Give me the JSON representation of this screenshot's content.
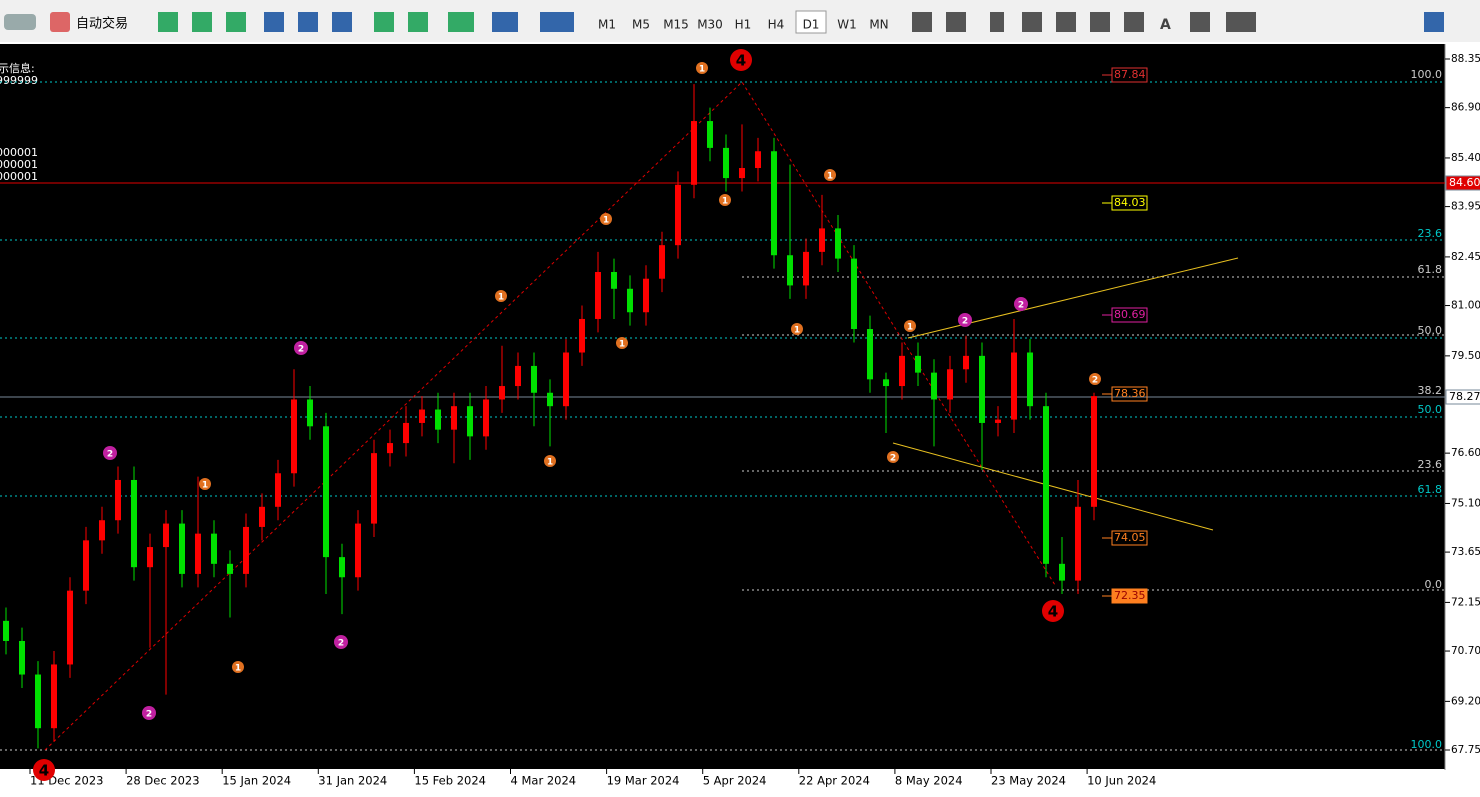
{
  "toolbar": {
    "auto_trade": "自动交易",
    "periods": [
      "M1",
      "M5",
      "M15",
      "M30",
      "H1",
      "H4",
      "D1",
      "W1",
      "MN"
    ],
    "text_tool": "A"
  },
  "info": {
    "title": "示信息:",
    "lines": [
      "999999",
      "000001",
      "000001",
      "000001"
    ]
  },
  "chart_data": {
    "type": "candlestick",
    "ylim": [
      67.75,
      88.35
    ],
    "yticks": [
      88.35,
      {
        "value": 86.9,
        "label": "86.90"
      },
      {
        "value": 85.4,
        "label": "85.40"
      },
      83.95,
      82.45,
      {
        "value": 81.0,
        "label": "81.00"
      },
      {
        "value": 79.5,
        "label": "79.50"
      },
      {
        "value": 76.6,
        "label": "76.60"
      },
      {
        "value": 75.1,
        "label": "75.10"
      },
      73.65,
      72.15,
      {
        "value": 70.7,
        "label": "70.70"
      },
      {
        "value": 69.2,
        "label": "69.20"
      },
      67.75
    ],
    "x_labels": [
      "11 Dec 2023",
      "28 Dec 2023",
      "15 Jan 2024",
      "31 Jan 2024",
      "15 Feb 2024",
      "4 Mar 2024",
      "19 Mar 2024",
      "5 Apr 2024",
      "22 Apr 2024",
      "8 May 2024",
      "23 May 2024",
      "10 Jun 2024"
    ],
    "up_color": "#ff0000",
    "down_color": "#00e000",
    "candles": [
      [
        71.6,
        72.0,
        70.6,
        71.0
      ],
      [
        71.0,
        71.4,
        69.6,
        70.0
      ],
      [
        70.0,
        70.4,
        67.8,
        68.4
      ],
      [
        68.4,
        70.7,
        68.0,
        70.3
      ],
      [
        70.3,
        72.9,
        69.9,
        72.5
      ],
      [
        72.5,
        74.4,
        72.1,
        74.0
      ],
      [
        74.0,
        75.0,
        73.6,
        74.6
      ],
      [
        74.6,
        76.2,
        74.2,
        75.8
      ],
      [
        75.8,
        76.2,
        72.8,
        73.2
      ],
      [
        73.2,
        74.2,
        70.8,
        73.8
      ],
      [
        73.8,
        74.9,
        69.4,
        74.5
      ],
      [
        74.5,
        74.9,
        72.6,
        73.0
      ],
      [
        73.0,
        75.9,
        72.6,
        74.2
      ],
      [
        74.2,
        74.6,
        72.9,
        73.3
      ],
      [
        73.3,
        73.7,
        71.7,
        73.0
      ],
      [
        73.0,
        74.8,
        72.6,
        74.4
      ],
      [
        74.4,
        75.4,
        74.0,
        75.0
      ],
      [
        75.0,
        76.4,
        74.6,
        76.0
      ],
      [
        76.0,
        79.1,
        75.6,
        78.2
      ],
      [
        78.2,
        78.6,
        77.0,
        77.4
      ],
      [
        77.4,
        77.8,
        72.4,
        73.5
      ],
      [
        73.5,
        73.9,
        71.8,
        72.9
      ],
      [
        72.9,
        74.9,
        72.5,
        74.5
      ],
      [
        74.5,
        77.0,
        74.1,
        76.6
      ],
      [
        76.6,
        77.3,
        76.2,
        76.9
      ],
      [
        76.9,
        78.0,
        76.5,
        77.5
      ],
      [
        77.5,
        78.3,
        77.1,
        77.9
      ],
      [
        77.9,
        78.4,
        76.9,
        77.3
      ],
      [
        77.3,
        78.4,
        76.3,
        78.0
      ],
      [
        78.0,
        78.4,
        76.4,
        77.1
      ],
      [
        77.1,
        78.6,
        76.7,
        78.2
      ],
      [
        78.2,
        79.8,
        77.8,
        78.6
      ],
      [
        78.6,
        79.6,
        78.2,
        79.2
      ],
      [
        79.2,
        79.6,
        77.4,
        78.4
      ],
      [
        78.4,
        78.8,
        76.8,
        78.0
      ],
      [
        78.0,
        80.0,
        77.6,
        79.6
      ],
      [
        79.6,
        81.0,
        79.2,
        80.6
      ],
      [
        80.6,
        82.6,
        80.2,
        82.0
      ],
      [
        82.0,
        82.4,
        80.6,
        81.5
      ],
      [
        81.5,
        81.9,
        80.4,
        80.8
      ],
      [
        80.8,
        82.2,
        80.4,
        81.8
      ],
      [
        81.8,
        83.2,
        81.4,
        82.8
      ],
      [
        82.8,
        85.0,
        82.4,
        84.6
      ],
      [
        84.6,
        87.6,
        84.2,
        86.5
      ],
      [
        86.5,
        86.9,
        85.3,
        85.7
      ],
      [
        85.7,
        86.1,
        84.4,
        84.8
      ],
      [
        84.8,
        86.4,
        84.4,
        85.1
      ],
      [
        85.1,
        86.0,
        84.7,
        85.6
      ],
      [
        85.6,
        86.0,
        82.1,
        82.5
      ],
      [
        82.5,
        85.2,
        81.2,
        81.6
      ],
      [
        81.6,
        83.0,
        81.2,
        82.6
      ],
      [
        82.6,
        84.3,
        82.2,
        83.3
      ],
      [
        83.3,
        83.7,
        82.0,
        82.4
      ],
      [
        82.4,
        82.8,
        79.9,
        80.3
      ],
      [
        80.3,
        80.7,
        78.4,
        78.8
      ],
      [
        78.8,
        79.0,
        77.2,
        78.6
      ],
      [
        78.6,
        79.9,
        78.2,
        79.5
      ],
      [
        79.5,
        79.9,
        78.6,
        79.0
      ],
      [
        79.0,
        79.4,
        76.8,
        78.2
      ],
      [
        78.2,
        79.5,
        77.8,
        79.1
      ],
      [
        79.1,
        80.1,
        78.7,
        79.5
      ],
      [
        79.5,
        79.9,
        76.1,
        77.5
      ],
      [
        77.5,
        78.0,
        77.1,
        77.6
      ],
      [
        77.6,
        80.6,
        77.2,
        79.6
      ],
      [
        79.6,
        80.0,
        77.6,
        78.0
      ],
      [
        78.0,
        78.4,
        72.9,
        73.3
      ],
      [
        73.3,
        74.1,
        72.4,
        72.8
      ],
      [
        72.8,
        75.8,
        72.4,
        75.0
      ],
      [
        75.0,
        78.4,
        74.6,
        78.3
      ]
    ],
    "fib_labels": [
      "100.0",
      "23.6",
      "61.8",
      "50.0",
      "38.2",
      "50.0",
      "23.6",
      "61.8",
      "0.0",
      "100.0"
    ],
    "price_tags": [
      "87.84",
      "84.03",
      "80.69",
      "78.36",
      "74.05",
      "72.35"
    ],
    "line_tags": [
      "84.60",
      "78.27"
    ],
    "wave_labels": [
      "4",
      "4",
      "4",
      "1",
      "1",
      "1",
      "1",
      "1",
      "1",
      "1",
      "1",
      "1",
      "1",
      "1",
      "2",
      "2",
      "2",
      "2",
      "2",
      "2",
      "2",
      "2"
    ]
  }
}
